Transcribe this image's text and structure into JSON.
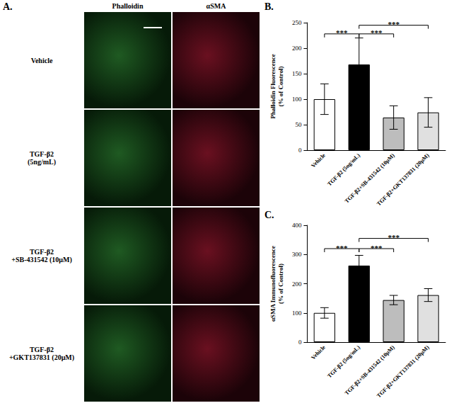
{
  "image_panel": {
    "label": "A.",
    "columns": [
      "Phalloidin",
      "αSMA"
    ],
    "rows": [
      [
        "Vehicle"
      ],
      [
        "TGF-β2",
        "(5ng/mL)"
      ],
      [
        "TGF-β2",
        "+SB-431542 (10μM)"
      ],
      [
        "TGF-β2",
        "+GKT137831 (20μM)"
      ]
    ]
  },
  "chart_data": [
    {
      "type": "bar",
      "title": "B.",
      "y_label": "Phalloidin Fluorescence\n(% of Control)",
      "categories": [
        "Vehicle",
        "TGF-β2 (5ng/mL)",
        "TGF-β2+SB-431542 (10μM)",
        "TGF-β2+GKT137831 (20μM)"
      ],
      "values": [
        100,
        168,
        64,
        74
      ],
      "errors": [
        30,
        52,
        23,
        29
      ],
      "colors": [
        "#ffffff",
        "#000000",
        "#bdbdbd",
        "#e0e0e0"
      ],
      "ylim": [
        0,
        250
      ],
      "yticks": [
        0,
        50,
        100,
        150,
        200,
        250
      ],
      "grid": false,
      "annotations": [
        {
          "from": "Vehicle",
          "to": "TGF-β2 (5ng/mL)",
          "y": 228,
          "text": "***"
        },
        {
          "from": "TGF-β2 (5ng/mL)",
          "to": "TGF-β2+SB-431542 (10μM)",
          "y": 228,
          "text": "***"
        },
        {
          "from": "TGF-β2 (5ng/mL)",
          "to": "TGF-β2+GKT137831 (20μM)",
          "y": 245,
          "text": "***"
        }
      ]
    },
    {
      "type": "bar",
      "title": "C.",
      "y_label": "αSMA Immunofluorescence\n(% of Control)",
      "categories": [
        "Vehicle",
        "TGF-β2 (5ng/mL)",
        "TGF-β2+SB-431542 (10μM)",
        "TGF-β2+GKT137831 (20μM)"
      ],
      "values": [
        100,
        262,
        144,
        161
      ],
      "errors": [
        18,
        35,
        16,
        22
      ],
      "colors": [
        "#ffffff",
        "#000000",
        "#bdbdbd",
        "#e0e0e0"
      ],
      "ylim": [
        0,
        400
      ],
      "yticks": [
        0,
        100,
        200,
        300,
        400
      ],
      "grid": false,
      "annotations": [
        {
          "from": "Vehicle",
          "to": "TGF-β2 (5ng/mL)",
          "y": 320,
          "text": "***"
        },
        {
          "from": "TGF-β2 (5ng/mL)",
          "to": "TGF-β2+SB-431542 (10μM)",
          "y": 320,
          "text": "***"
        },
        {
          "from": "TGF-β2 (5ng/mL)",
          "to": "TGF-β2+GKT137831 (20μM)",
          "y": 355,
          "text": "***"
        }
      ]
    }
  ]
}
